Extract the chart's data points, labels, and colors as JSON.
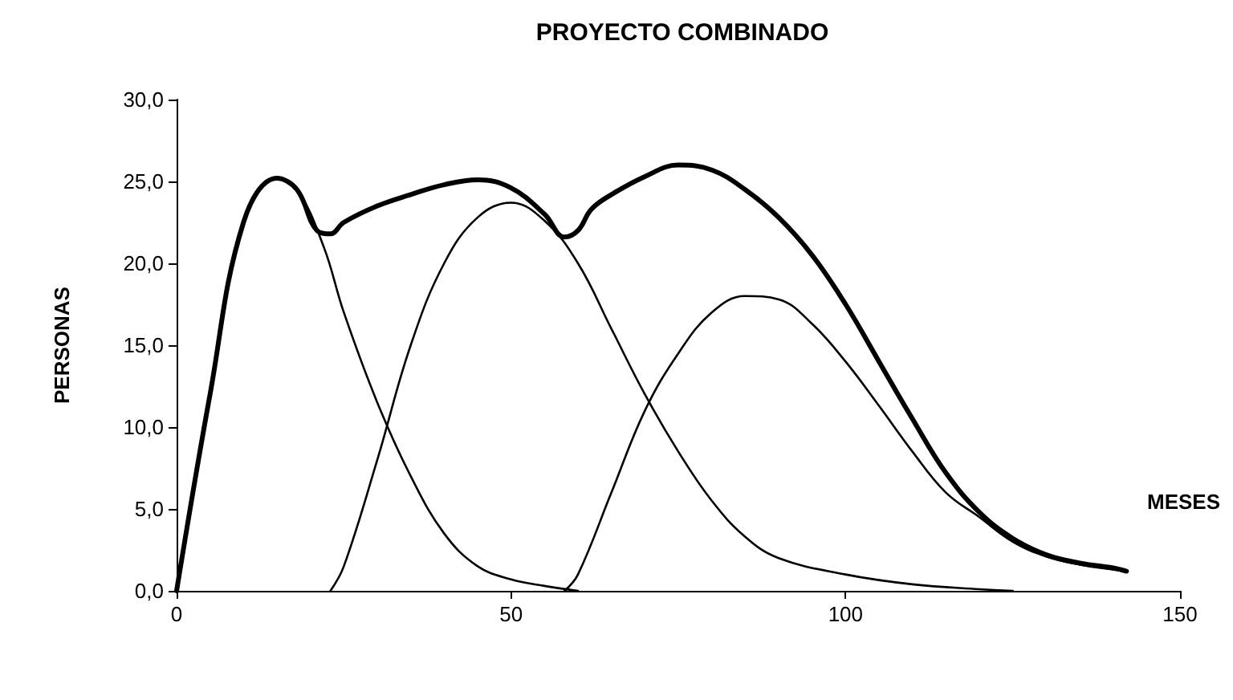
{
  "chart_data": {
    "type": "line",
    "title": "PROYECTO COMBINADO",
    "xlabel": "MESES",
    "ylabel": "PERSONAS",
    "xlim": [
      0,
      150
    ],
    "xticks": [
      0,
      50,
      100,
      150
    ],
    "ylim": [
      0,
      30
    ],
    "yticks": [
      {
        "value": 0,
        "label": "0,0"
      },
      {
        "value": 5,
        "label": "5,0"
      },
      {
        "value": 10,
        "label": "10,0"
      },
      {
        "value": 15,
        "label": "15,0"
      },
      {
        "value": 20,
        "label": "20,0"
      },
      {
        "value": 25,
        "label": "25,0"
      },
      {
        "value": 30,
        "label": "30,0"
      }
    ],
    "grid": false,
    "marker": "none",
    "line_style": "solid",
    "series": [
      {
        "color": "#000000",
        "x": [
          0,
          5,
          10,
          15,
          18,
          22,
          25,
          30,
          35,
          40,
          45,
          50,
          55,
          60
        ],
        "values": [
          0,
          12,
          22.5,
          25.2,
          24.5,
          21,
          17,
          11.5,
          7,
          3.5,
          1.5,
          0.7,
          0.3,
          0
        ]
      },
      {
        "color": "#000000",
        "x": [
          23,
          25,
          30,
          35,
          40,
          45,
          50,
          55,
          60,
          65,
          70,
          75,
          80,
          85,
          90,
          100,
          110,
          120,
          125
        ],
        "values": [
          0,
          1.5,
          8,
          15,
          20,
          22.8,
          23.7,
          22.6,
          20,
          16,
          12,
          8.5,
          5.5,
          3.3,
          2,
          1,
          0.4,
          0.1,
          0
        ]
      },
      {
        "color": "#000000",
        "x": [
          58,
          60,
          65,
          70,
          75,
          80,
          85,
          90,
          95,
          100,
          105,
          110,
          115,
          120,
          125,
          130,
          135,
          140,
          142
        ],
        "values": [
          0,
          1,
          6,
          11,
          14.5,
          17,
          18,
          17.8,
          16.3,
          14,
          11.3,
          8.5,
          6,
          4.5,
          3,
          2.1,
          1.6,
          1.3,
          1.2
        ]
      },
      {
        "color": "#000000",
        "x": [
          0,
          5,
          10,
          15,
          18,
          21,
          23,
          25,
          30,
          35,
          40,
          45,
          50,
          55,
          58,
          60,
          62,
          65,
          70,
          75,
          80,
          85,
          90,
          95,
          100,
          105,
          110,
          115,
          120,
          125,
          130,
          135,
          140,
          142
        ],
        "values": [
          0,
          12,
          22.5,
          25.2,
          24.5,
          22,
          21.8,
          22.5,
          23.5,
          24.2,
          24.8,
          25.1,
          24.6,
          23,
          21.6,
          22,
          23.3,
          24.2,
          25.3,
          26,
          25.7,
          24.5,
          22.8,
          20.5,
          17.5,
          14,
          10.5,
          7.2,
          4.8,
          3.2,
          2.2,
          1.7,
          1.4,
          1.2
        ]
      }
    ]
  }
}
